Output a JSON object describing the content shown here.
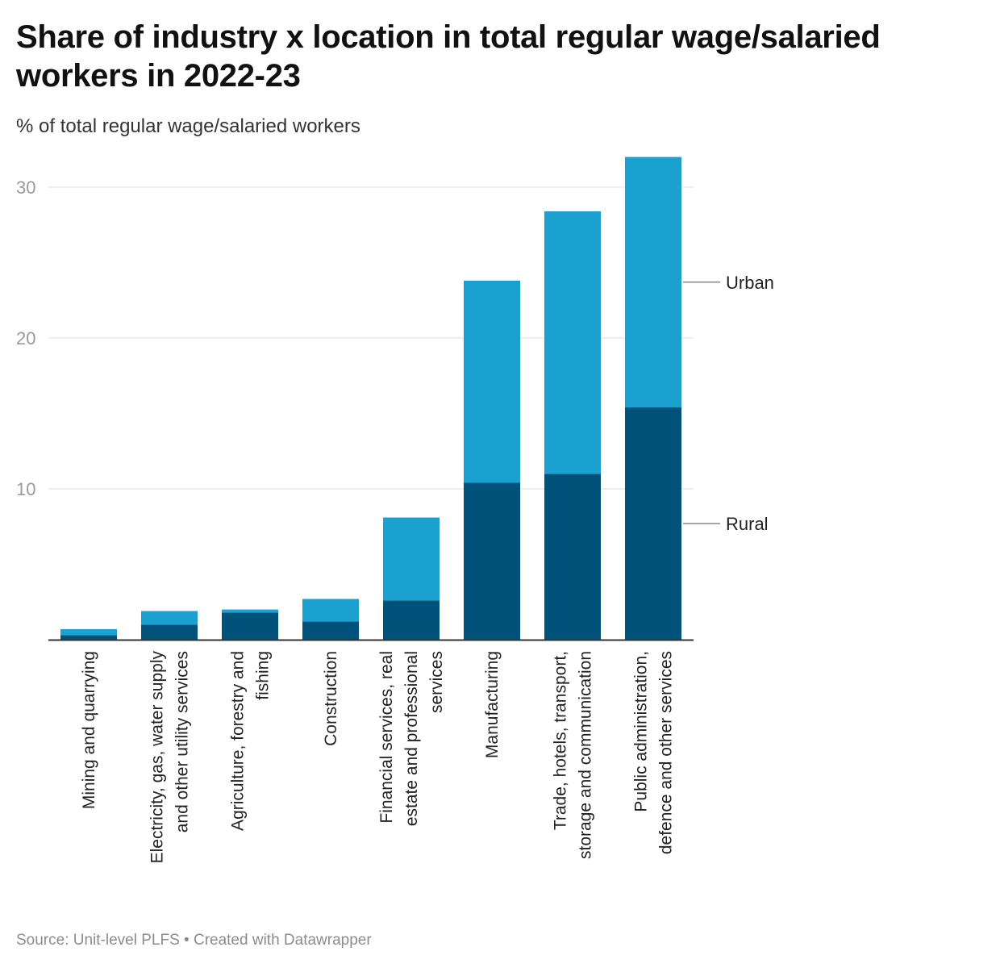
{
  "title": "Share of industry x location in total regular wage/salaried workers in 2022-23",
  "subtitle": "% of total regular wage/salaried workers",
  "footer": {
    "source": "Source: Unit-level PLFS",
    "separator": " • ",
    "credit": "Created with Datawrapper"
  },
  "chart_data": {
    "type": "bar",
    "stacked": true,
    "orientation": "vertical",
    "categories": [
      "Mining and quarrying",
      "Electricity, gas, water supply and other utility services",
      "Agriculture, forestry and fishing",
      "Construction",
      "Financial services, real estate and professional services",
      "Manufacturing",
      "Trade, hotels, transport, storage and communication",
      "Public administration, defence and other services"
    ],
    "category_lines": [
      [
        "Mining and quarrying"
      ],
      [
        "Electricity, gas, water supply",
        "and other utility services"
      ],
      [
        "Agriculture, forestry and",
        "fishing"
      ],
      [
        "Construction"
      ],
      [
        "Financial services, real",
        "estate and professional",
        "services"
      ],
      [
        "Manufacturing"
      ],
      [
        "Trade, hotels, transport,",
        "storage and communication"
      ],
      [
        "Public administration,",
        "defence and other services"
      ]
    ],
    "series": [
      {
        "name": "Rural",
        "color": "#00527a",
        "values": [
          0.3,
          1.0,
          1.8,
          1.2,
          2.6,
          10.4,
          11.0,
          15.4
        ]
      },
      {
        "name": "Urban",
        "color": "#1ba1cf",
        "values": [
          0.4,
          0.9,
          0.2,
          1.5,
          5.5,
          13.4,
          17.4,
          16.6
        ]
      }
    ],
    "ylim": [
      0,
      30
    ],
    "yticks": [
      10,
      20,
      30
    ],
    "grid": true,
    "legend": "direct labels at right of last bar",
    "axis_color": "#333333",
    "grid_color": "#e4e4e4"
  }
}
